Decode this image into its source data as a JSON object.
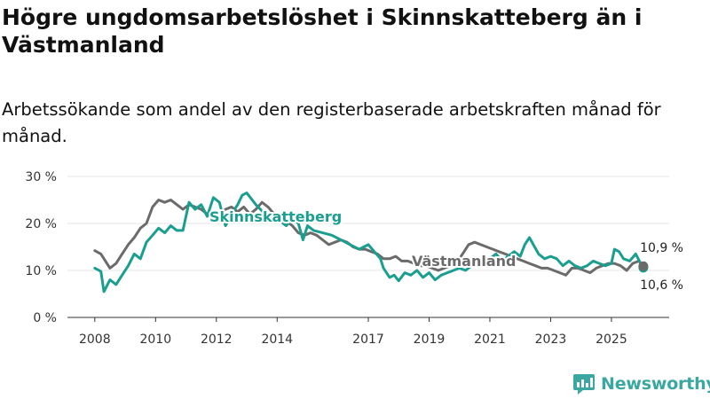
{
  "header": {
    "title": "Högre ungdomsarbetslöshet i Skinnskatteberg än i Västmanland",
    "subtitle": "Arbetssökande som andel av den registerbaserade arbetskraften månad för månad."
  },
  "brand": {
    "name": "Newsworthy"
  },
  "colors": {
    "skinnskatteberg": "#1a9e8f",
    "vastmanland": "#6b6b6b",
    "grid": "#e6e6e6",
    "axis": "#333333"
  },
  "chart_data": {
    "type": "line",
    "title": "Högre ungdomsarbetslöshet i Skinnskatteberg än i Västmanland",
    "subtitle": "Arbetssökande som andel av den registerbaserade arbetskraften månad för månad.",
    "xlabel": "",
    "ylabel": "",
    "ylim": [
      0,
      30
    ],
    "xlim": [
      2007.1,
      2026.9
    ],
    "y_ticks": [
      0,
      10,
      20,
      30
    ],
    "y_tick_labels": [
      "0 %",
      "10 %",
      "20 %",
      "30 %"
    ],
    "x_ticks": [
      2008,
      2010,
      2012,
      2014,
      2017,
      2019,
      2021,
      2023,
      2025
    ],
    "x_tick_labels": [
      "2008",
      "2010",
      "2012",
      "2014",
      "2017",
      "2019",
      "2021",
      "2023",
      "2025"
    ],
    "grid": true,
    "series": [
      {
        "name": "Skinnskatteberg",
        "label": "Skinnskatteberg",
        "color": "#1a9e8f",
        "last_value_label": "10,6 %",
        "points": [
          [
            2008.0,
            10.5
          ],
          [
            2008.2,
            9.8
          ],
          [
            2008.3,
            5.5
          ],
          [
            2008.5,
            8.0
          ],
          [
            2008.7,
            7.0
          ],
          [
            2008.9,
            9.0
          ],
          [
            2009.1,
            11.0
          ],
          [
            2009.3,
            13.5
          ],
          [
            2009.5,
            12.5
          ],
          [
            2009.7,
            16.0
          ],
          [
            2009.9,
            17.5
          ],
          [
            2010.1,
            19.0
          ],
          [
            2010.3,
            18.0
          ],
          [
            2010.5,
            19.5
          ],
          [
            2010.7,
            18.5
          ],
          [
            2010.9,
            18.5
          ],
          [
            2011.1,
            24.5
          ],
          [
            2011.3,
            23.0
          ],
          [
            2011.5,
            24.0
          ],
          [
            2011.7,
            21.5
          ],
          [
            2011.9,
            25.5
          ],
          [
            2012.1,
            24.5
          ],
          [
            2012.3,
            19.5
          ],
          [
            2012.5,
            22.0
          ],
          [
            2012.7,
            24.0
          ],
          [
            2012.85,
            26.0
          ],
          [
            2013.0,
            26.5
          ],
          [
            2013.3,
            24.0
          ],
          [
            2013.6,
            22.0
          ],
          [
            2013.8,
            21.0
          ],
          [
            2014.1,
            20.5
          ],
          [
            2014.3,
            19.5
          ],
          [
            2014.5,
            21.0
          ],
          [
            2014.7,
            20.0
          ],
          [
            2014.85,
            16.5
          ],
          [
            2015.0,
            19.5
          ],
          [
            2015.2,
            18.5
          ],
          [
            2015.5,
            18.0
          ],
          [
            2015.8,
            17.5
          ],
          [
            2016.1,
            16.5
          ],
          [
            2016.4,
            15.5
          ],
          [
            2016.7,
            14.5
          ],
          [
            2017.0,
            15.5
          ],
          [
            2017.2,
            14.0
          ],
          [
            2017.4,
            12.5
          ],
          [
            2017.5,
            10.5
          ],
          [
            2017.7,
            8.5
          ],
          [
            2017.85,
            9.0
          ],
          [
            2018.0,
            7.8
          ],
          [
            2018.2,
            9.5
          ],
          [
            2018.4,
            9.0
          ],
          [
            2018.6,
            10.0
          ],
          [
            2018.8,
            8.5
          ],
          [
            2019.0,
            9.5
          ],
          [
            2019.2,
            8.0
          ],
          [
            2019.4,
            9.0
          ],
          [
            2019.6,
            9.5
          ],
          [
            2019.8,
            10.0
          ],
          [
            2020.0,
            10.5
          ],
          [
            2020.2,
            10.0
          ],
          [
            2020.4,
            11.0
          ],
          [
            2020.6,
            11.5
          ],
          [
            2020.8,
            12.5
          ],
          [
            2021.0,
            12.5
          ],
          [
            2021.2,
            13.5
          ],
          [
            2021.4,
            12.0
          ],
          [
            2021.6,
            13.0
          ],
          [
            2021.8,
            14.0
          ],
          [
            2022.0,
            13.0
          ],
          [
            2022.15,
            15.5
          ],
          [
            2022.3,
            17.0
          ],
          [
            2022.6,
            13.5
          ],
          [
            2022.8,
            12.5
          ],
          [
            2023.0,
            13.0
          ],
          [
            2023.2,
            12.5
          ],
          [
            2023.4,
            11.0
          ],
          [
            2023.6,
            12.0
          ],
          [
            2023.8,
            11.0
          ],
          [
            2024.0,
            10.5
          ],
          [
            2024.2,
            11.0
          ],
          [
            2024.4,
            12.0
          ],
          [
            2024.6,
            11.5
          ],
          [
            2024.8,
            11.0
          ],
          [
            2025.0,
            11.5
          ],
          [
            2025.1,
            14.5
          ],
          [
            2025.25,
            14.0
          ],
          [
            2025.4,
            12.5
          ],
          [
            2025.6,
            12.0
          ],
          [
            2025.8,
            13.5
          ],
          [
            2026.0,
            11.0
          ],
          [
            2026.05,
            10.6
          ]
        ]
      },
      {
        "name": "Västmanland",
        "label": "Västmanland",
        "color": "#6b6b6b",
        "last_value_label": "10,9 %",
        "points": [
          [
            2008.0,
            14.2
          ],
          [
            2008.2,
            13.5
          ],
          [
            2008.35,
            12.0
          ],
          [
            2008.5,
            10.5
          ],
          [
            2008.7,
            11.5
          ],
          [
            2008.9,
            13.5
          ],
          [
            2009.1,
            15.5
          ],
          [
            2009.3,
            17.0
          ],
          [
            2009.5,
            19.0
          ],
          [
            2009.7,
            20.0
          ],
          [
            2009.9,
            23.5
          ],
          [
            2010.1,
            25.0
          ],
          [
            2010.3,
            24.5
          ],
          [
            2010.5,
            25.0
          ],
          [
            2010.7,
            24.0
          ],
          [
            2010.9,
            23.0
          ],
          [
            2011.1,
            24.0
          ],
          [
            2011.3,
            23.5
          ],
          [
            2011.5,
            23.0
          ],
          [
            2011.7,
            22.0
          ],
          [
            2011.9,
            21.5
          ],
          [
            2012.1,
            22.0
          ],
          [
            2012.3,
            23.0
          ],
          [
            2012.5,
            23.5
          ],
          [
            2012.7,
            22.5
          ],
          [
            2012.9,
            23.5
          ],
          [
            2013.1,
            22.0
          ],
          [
            2013.3,
            23.0
          ],
          [
            2013.5,
            24.5
          ],
          [
            2013.7,
            23.5
          ],
          [
            2013.9,
            22.0
          ],
          [
            2014.1,
            21.0
          ],
          [
            2014.3,
            20.5
          ],
          [
            2014.5,
            19.5
          ],
          [
            2014.7,
            18.0
          ],
          [
            2014.9,
            17.5
          ],
          [
            2015.1,
            18.0
          ],
          [
            2015.3,
            17.5
          ],
          [
            2015.5,
            16.5
          ],
          [
            2015.7,
            15.5
          ],
          [
            2015.9,
            16.0
          ],
          [
            2016.1,
            16.5
          ],
          [
            2016.3,
            16.0
          ],
          [
            2016.5,
            15.0
          ],
          [
            2016.7,
            14.5
          ],
          [
            2016.9,
            14.5
          ],
          [
            2017.1,
            14.0
          ],
          [
            2017.3,
            13.5
          ],
          [
            2017.5,
            12.5
          ],
          [
            2017.7,
            12.5
          ],
          [
            2017.9,
            13.0
          ],
          [
            2018.1,
            12.0
          ],
          [
            2018.3,
            12.0
          ],
          [
            2018.5,
            11.5
          ],
          [
            2018.7,
            11.0
          ],
          [
            2018.9,
            11.0
          ],
          [
            2019.1,
            10.5
          ],
          [
            2019.3,
            10.0
          ],
          [
            2019.5,
            10.5
          ],
          [
            2019.7,
            11.0
          ],
          [
            2019.9,
            11.5
          ],
          [
            2020.1,
            13.5
          ],
          [
            2020.3,
            15.5
          ],
          [
            2020.5,
            16.0
          ],
          [
            2020.7,
            15.5
          ],
          [
            2020.9,
            15.0
          ],
          [
            2021.1,
            14.5
          ],
          [
            2021.3,
            14.0
          ],
          [
            2021.5,
            13.5
          ],
          [
            2021.7,
            13.0
          ],
          [
            2021.9,
            12.5
          ],
          [
            2022.1,
            12.0
          ],
          [
            2022.3,
            11.5
          ],
          [
            2022.5,
            11.0
          ],
          [
            2022.7,
            10.5
          ],
          [
            2022.9,
            10.5
          ],
          [
            2023.1,
            10.0
          ],
          [
            2023.3,
            9.5
          ],
          [
            2023.5,
            9.0
          ],
          [
            2023.7,
            10.5
          ],
          [
            2023.9,
            10.5
          ],
          [
            2024.1,
            10.0
          ],
          [
            2024.3,
            9.5
          ],
          [
            2024.5,
            10.5
          ],
          [
            2024.7,
            11.0
          ],
          [
            2024.9,
            11.5
          ],
          [
            2025.1,
            11.5
          ],
          [
            2025.3,
            11.0
          ],
          [
            2025.5,
            10.0
          ],
          [
            2025.7,
            11.5
          ],
          [
            2025.9,
            12.0
          ],
          [
            2026.05,
            10.9
          ]
        ]
      }
    ]
  }
}
